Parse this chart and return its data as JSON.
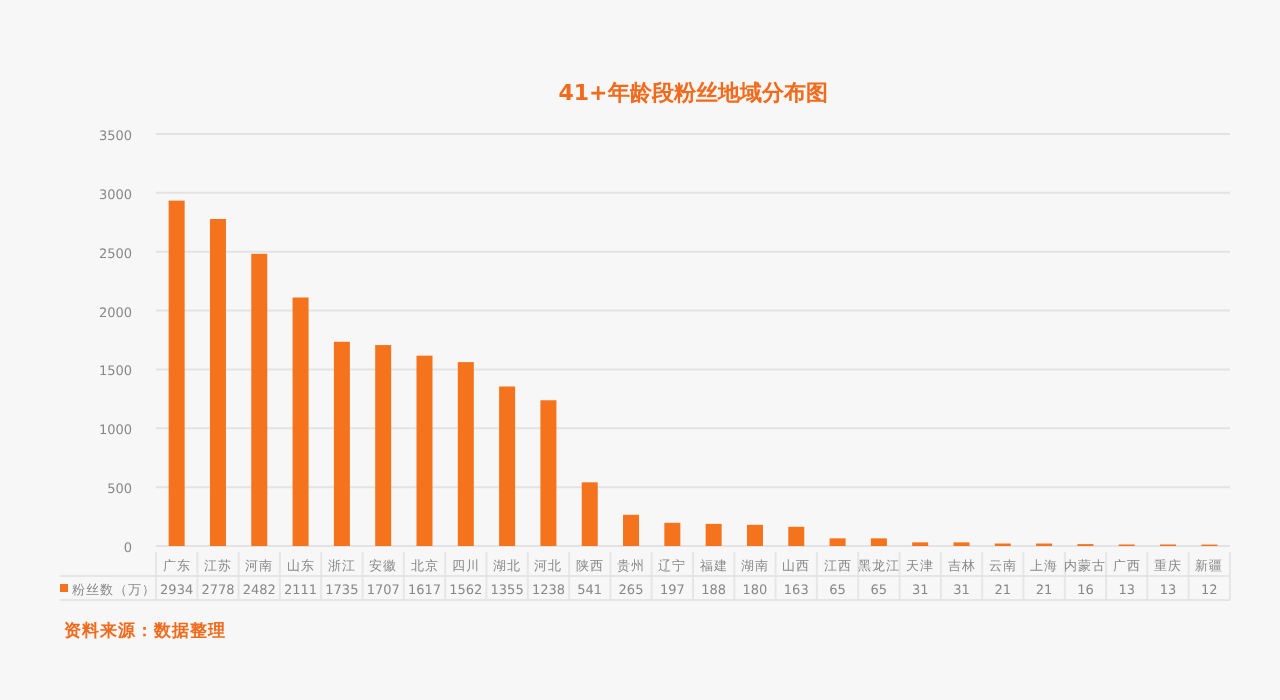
{
  "chart_data": {
    "type": "bar",
    "title": "41+年龄段粉丝地域分布图",
    "categories": [
      "广东",
      "江苏",
      "河南",
      "山东",
      "浙江",
      "安徽",
      "北京",
      "四川",
      "湖北",
      "河北",
      "陕西",
      "贵州",
      "辽宁",
      "福建",
      "湖南",
      "山西",
      "江西",
      "黑龙江",
      "天津",
      "吉林",
      "云南",
      "上海",
      "内蒙古",
      "广西",
      "重庆",
      "新疆"
    ],
    "series": [
      {
        "name": "粉丝数（万）",
        "color": "#f5731c",
        "values": [
          2934,
          2778,
          2482,
          2111,
          1735,
          1707,
          1617,
          1562,
          1355,
          1238,
          541,
          265,
          197,
          188,
          180,
          163,
          65,
          65,
          31,
          31,
          21,
          21,
          16,
          13,
          13,
          12
        ]
      }
    ],
    "ylim": [
      0,
      3500
    ],
    "yticks": [
      0,
      500,
      1000,
      1500,
      2000,
      2500,
      3000,
      3500
    ],
    "grid": "y",
    "data_labels": true,
    "legend": "bottom",
    "annotations": [
      "资料来源：数据整理"
    ]
  }
}
